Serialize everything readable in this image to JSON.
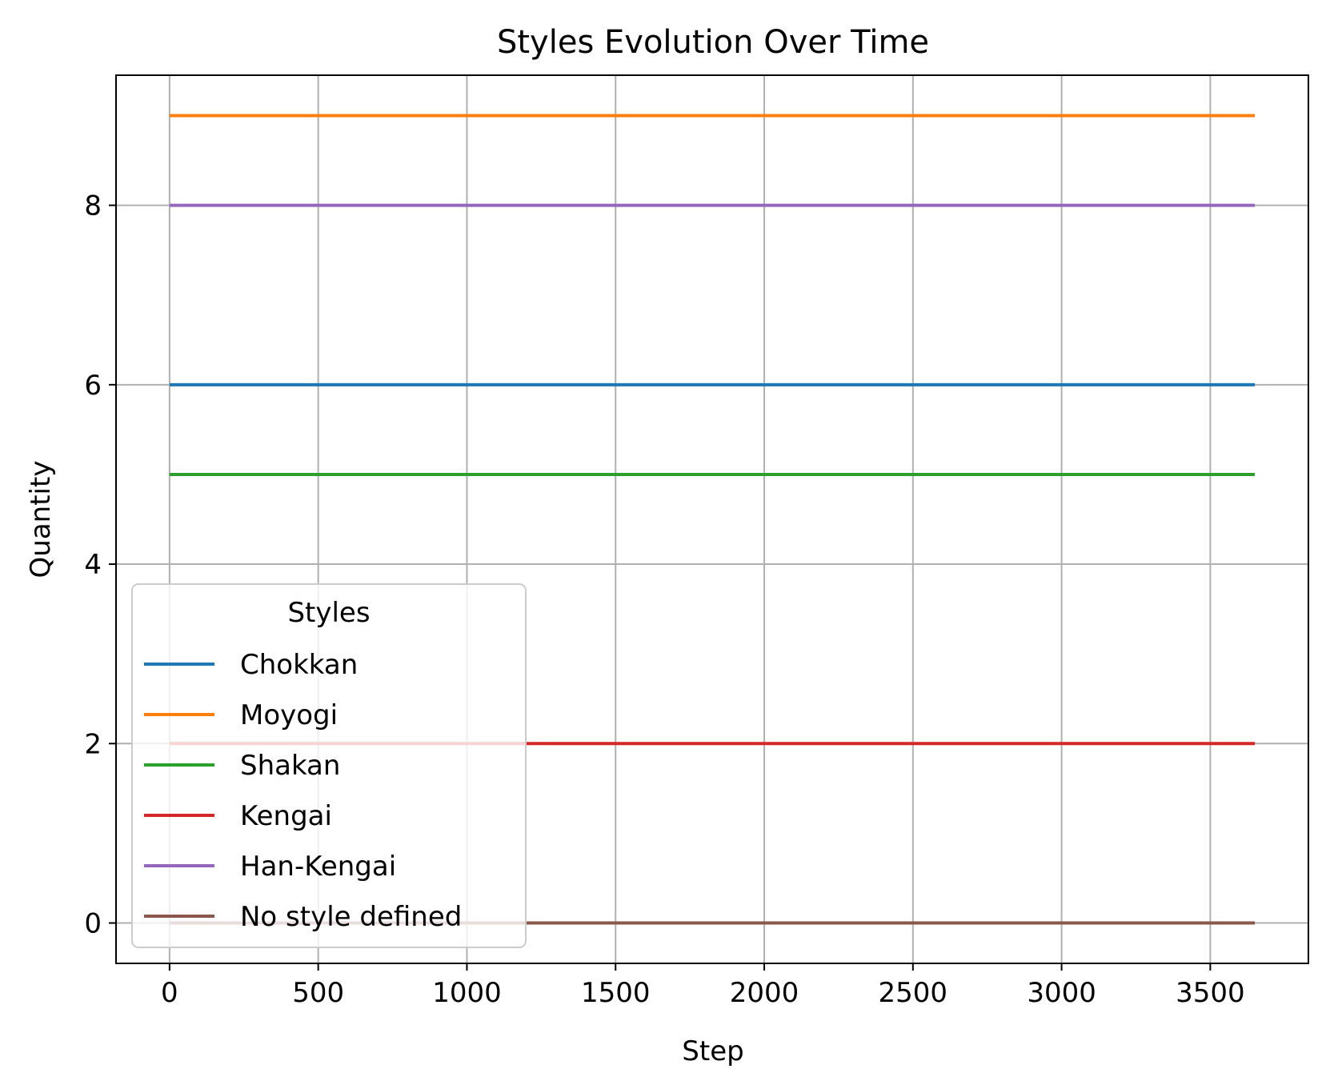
{
  "chart_data": {
    "type": "line",
    "title": "Styles Evolution Over Time",
    "xlabel": "Step",
    "ylabel": "Quantity",
    "xlim": [
      -180,
      3830
    ],
    "ylim": [
      -0.45,
      9.45
    ],
    "xticks": [
      0,
      500,
      1000,
      1500,
      2000,
      2500,
      3000,
      3500
    ],
    "yticks": [
      0,
      2,
      4,
      6,
      8
    ],
    "grid": true,
    "legend": {
      "title": "Styles",
      "placement": "lower-left"
    },
    "x": [
      0,
      3650
    ],
    "series": [
      {
        "name": "Chokkan",
        "values": [
          6,
          6
        ],
        "color": "#1f77b4"
      },
      {
        "name": "Moyogi",
        "values": [
          9,
          9
        ],
        "color": "#ff7f0e"
      },
      {
        "name": "Shakan",
        "values": [
          5,
          5
        ],
        "color": "#2ca02c"
      },
      {
        "name": "Kengai",
        "values": [
          2,
          2
        ],
        "color": "#d62728"
      },
      {
        "name": "Han-Kengai",
        "values": [
          8,
          8
        ],
        "color": "#9467bd"
      },
      {
        "name": "No style defined",
        "values": [
          0,
          0
        ],
        "color": "#8c564b"
      }
    ]
  }
}
